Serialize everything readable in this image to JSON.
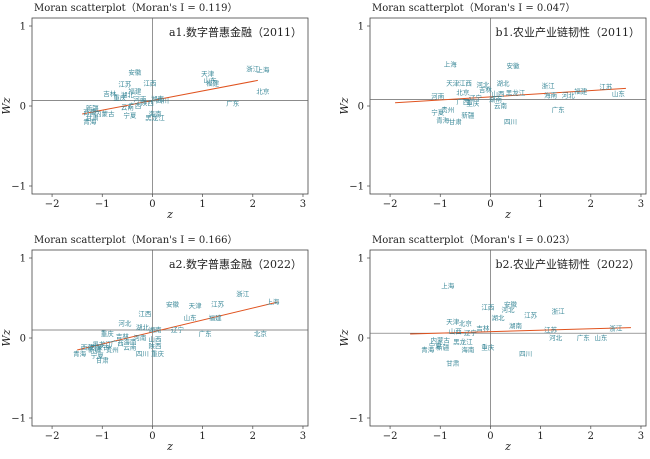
{
  "chart_data": [
    {
      "type": "scatter",
      "title": "Moran scatterplot（Moran's I = 0.119）",
      "annotation": "a1.数字普惠金融（2011）",
      "xlabel": "z",
      "ylabel": "Wz",
      "xlim": [
        -2.4,
        3.1
      ],
      "ylim": [
        -1.1,
        1.1
      ],
      "xticks": [
        "−2",
        "−1",
        "0",
        "1",
        "2",
        "3"
      ],
      "yticks": [
        "−1",
        "0",
        "1"
      ],
      "hline": 0.07,
      "fit": [
        [
          -1.4,
          -0.1
        ],
        [
          2.1,
          0.32
        ]
      ],
      "points": [
        {
          "label": "安徽",
          "x": -0.35,
          "y": 0.42
        },
        {
          "label": "江苏",
          "x": -0.55,
          "y": 0.27
        },
        {
          "label": "江西",
          "x": -0.05,
          "y": 0.28
        },
        {
          "label": "福建",
          "x": -0.35,
          "y": 0.18
        },
        {
          "label": "湖北",
          "x": -0.5,
          "y": 0.14
        },
        {
          "label": "吉林",
          "x": -0.85,
          "y": 0.15
        },
        {
          "label": "重庆",
          "x": -0.65,
          "y": 0.1
        },
        {
          "label": "河南",
          "x": -0.25,
          "y": 0.08
        },
        {
          "label": "湖南",
          "x": 0.1,
          "y": 0.09
        },
        {
          "label": "四川",
          "x": 0.2,
          "y": 0.06
        },
        {
          "label": "陕西",
          "x": -0.1,
          "y": 0.04
        },
        {
          "label": "广西",
          "x": -0.35,
          "y": 0.0
        },
        {
          "label": "云南",
          "x": -0.5,
          "y": -0.02
        },
        {
          "label": "新疆",
          "x": -1.2,
          "y": -0.03
        },
        {
          "label": "西藏",
          "x": -1.25,
          "y": -0.08
        },
        {
          "label": "内蒙古",
          "x": -0.95,
          "y": -0.1
        },
        {
          "label": "宁夏",
          "x": -0.45,
          "y": -0.12
        },
        {
          "label": "甘肃",
          "x": -1.2,
          "y": -0.15
        },
        {
          "label": "青海",
          "x": -1.25,
          "y": -0.2
        },
        {
          "label": "海南",
          "x": 0.05,
          "y": -0.1
        },
        {
          "label": "黑龙江",
          "x": 0.05,
          "y": -0.15
        },
        {
          "label": "天津",
          "x": 1.1,
          "y": 0.4
        },
        {
          "label": "山东",
          "x": 1.15,
          "y": 0.32
        },
        {
          "label": "福建",
          "x": 1.2,
          "y": 0.28
        },
        {
          "label": "浙江",
          "x": 2.0,
          "y": 0.46
        },
        {
          "label": "上海",
          "x": 2.2,
          "y": 0.45
        },
        {
          "label": "广东",
          "x": 1.6,
          "y": 0.03
        },
        {
          "label": "北京",
          "x": 2.2,
          "y": 0.18
        }
      ]
    },
    {
      "type": "scatter",
      "title": "Moran scatterplot（Moran's I = 0.047）",
      "annotation": "b1.农业产业链韧性（2011）",
      "xlabel": "z",
      "ylabel": "Wz",
      "xlim": [
        -2.4,
        3.1
      ],
      "ylim": [
        -1.1,
        1.1
      ],
      "xticks": [
        "−2",
        "−1",
        "0",
        "1",
        "2",
        "3"
      ],
      "yticks": [
        "−1",
        "0",
        "1"
      ],
      "hline": 0.08,
      "fit": [
        [
          -1.9,
          0.04
        ],
        [
          2.7,
          0.22
        ]
      ],
      "points": [
        {
          "label": "上海",
          "x": -0.8,
          "y": 0.52
        },
        {
          "label": "安徽",
          "x": 0.45,
          "y": 0.5
        },
        {
          "label": "天津",
          "x": -0.75,
          "y": 0.28
        },
        {
          "label": "江西",
          "x": -0.5,
          "y": 0.28
        },
        {
          "label": "河北",
          "x": -0.15,
          "y": 0.26
        },
        {
          "label": "湖北",
          "x": 0.25,
          "y": 0.28
        },
        {
          "label": "吉林",
          "x": -0.1,
          "y": 0.2
        },
        {
          "label": "北京",
          "x": -0.55,
          "y": 0.17
        },
        {
          "label": "山西",
          "x": 0.15,
          "y": 0.15
        },
        {
          "label": "河南",
          "x": -1.05,
          "y": 0.12
        },
        {
          "label": "辽宁",
          "x": -0.3,
          "y": 0.1
        },
        {
          "label": "黑龙江",
          "x": 0.5,
          "y": 0.16
        },
        {
          "label": "湖南",
          "x": 0.1,
          "y": 0.08
        },
        {
          "label": "广西",
          "x": -0.55,
          "y": 0.05
        },
        {
          "label": "重庆",
          "x": -0.35,
          "y": 0.03
        },
        {
          "label": "贵州",
          "x": -0.85,
          "y": -0.05
        },
        {
          "label": "宁夏",
          "x": -1.05,
          "y": -0.08
        },
        {
          "label": "新疆",
          "x": -0.45,
          "y": -0.12
        },
        {
          "label": "青海",
          "x": -0.95,
          "y": -0.18
        },
        {
          "label": "甘肃",
          "x": -0.7,
          "y": -0.2
        },
        {
          "label": "云南",
          "x": 0.2,
          "y": 0.0
        },
        {
          "label": "浙江",
          "x": 1.15,
          "y": 0.25
        },
        {
          "label": "江苏",
          "x": 2.3,
          "y": 0.24
        },
        {
          "label": "海南",
          "x": 1.2,
          "y": 0.13
        },
        {
          "label": "河北",
          "x": 1.55,
          "y": 0.13
        },
        {
          "label": "福建",
          "x": 1.8,
          "y": 0.18
        },
        {
          "label": "山东",
          "x": 2.55,
          "y": 0.15
        },
        {
          "label": "广东",
          "x": 1.35,
          "y": -0.05
        },
        {
          "label": "四川",
          "x": 0.4,
          "y": -0.2
        }
      ]
    },
    {
      "type": "scatter",
      "title": "Moran scatterplot（Moran's I = 0.166）",
      "annotation": "a2.数字普惠金融（2022）",
      "xlabel": "z",
      "ylabel": "Wz",
      "xlim": [
        -2.4,
        3.1
      ],
      "ylim": [
        -1.1,
        1.1
      ],
      "xticks": [
        "−2",
        "−1",
        "0",
        "1",
        "2",
        "3"
      ],
      "yticks": [
        "−1",
        "0",
        "1"
      ],
      "hline": 0.1,
      "fit": [
        [
          -1.5,
          -0.15
        ],
        [
          2.5,
          0.45
        ]
      ],
      "points": [
        {
          "label": "浙江",
          "x": 1.8,
          "y": 0.55
        },
        {
          "label": "上海",
          "x": 2.4,
          "y": 0.45
        },
        {
          "label": "安徽",
          "x": 0.4,
          "y": 0.42
        },
        {
          "label": "天津",
          "x": 0.85,
          "y": 0.4
        },
        {
          "label": "江苏",
          "x": 1.3,
          "y": 0.42
        },
        {
          "label": "福建",
          "x": 1.25,
          "y": 0.25
        },
        {
          "label": "山东",
          "x": 0.75,
          "y": 0.25
        },
        {
          "label": "江西",
          "x": -0.15,
          "y": 0.3
        },
        {
          "label": "河北",
          "x": -0.55,
          "y": 0.18
        },
        {
          "label": "湖北",
          "x": -0.2,
          "y": 0.13
        },
        {
          "label": "湖南",
          "x": 0.05,
          "y": 0.1
        },
        {
          "label": "辽宁",
          "x": 0.5,
          "y": 0.1
        },
        {
          "label": "吉林",
          "x": -0.6,
          "y": 0.02
        },
        {
          "label": "重庆",
          "x": -0.9,
          "y": 0.05
        },
        {
          "label": "河南",
          "x": -0.25,
          "y": 0.0
        },
        {
          "label": "山西",
          "x": 0.05,
          "y": -0.02
        },
        {
          "label": "海南",
          "x": -0.45,
          "y": -0.05
        },
        {
          "label": "广西",
          "x": -0.7,
          "y": -0.07
        },
        {
          "label": "黑龙江",
          "x": -1.0,
          "y": -0.08
        },
        {
          "label": "陕西",
          "x": 0.05,
          "y": -0.1
        },
        {
          "label": "西藏",
          "x": -1.3,
          "y": -0.12
        },
        {
          "label": "内蒙古",
          "x": -1.05,
          "y": -0.12
        },
        {
          "label": "云南",
          "x": -0.45,
          "y": -0.12
        },
        {
          "label": "贵州",
          "x": -0.8,
          "y": -0.15
        },
        {
          "label": "新疆",
          "x": -1.15,
          "y": -0.15
        },
        {
          "label": "青海",
          "x": -1.45,
          "y": -0.2
        },
        {
          "label": "宁夏",
          "x": -1.1,
          "y": -0.22
        },
        {
          "label": "四川",
          "x": -0.2,
          "y": -0.2
        },
        {
          "label": "重庆",
          "x": 0.1,
          "y": -0.2
        },
        {
          "label": "甘肃",
          "x": -1.0,
          "y": -0.28
        },
        {
          "label": "广东",
          "x": 1.05,
          "y": 0.05
        },
        {
          "label": "北京",
          "x": 2.15,
          "y": 0.05
        }
      ]
    },
    {
      "type": "scatter",
      "title": "Moran scatterplot（Moran's I = 0.023）",
      "annotation": "b2.农业产业链韧性（2022）",
      "xlabel": "z",
      "ylabel": "Wz",
      "xlim": [
        -2.4,
        3.1
      ],
      "ylim": [
        -1.1,
        1.1
      ],
      "xticks": [
        "−2",
        "−1",
        "0",
        "1",
        "2",
        "3"
      ],
      "yticks": [
        "−1",
        "0",
        "1"
      ],
      "hline": 0.06,
      "fit": [
        [
          -1.6,
          0.05
        ],
        [
          2.8,
          0.13
        ]
      ],
      "points": [
        {
          "label": "上海",
          "x": -0.85,
          "y": 0.65
        },
        {
          "label": "安徽",
          "x": 0.4,
          "y": 0.42
        },
        {
          "label": "江西",
          "x": -0.05,
          "y": 0.38
        },
        {
          "label": "河北",
          "x": 0.35,
          "y": 0.35
        },
        {
          "label": "湖北",
          "x": 0.15,
          "y": 0.25
        },
        {
          "label": "江苏",
          "x": 0.8,
          "y": 0.28
        },
        {
          "label": "浙江",
          "x": 1.35,
          "y": 0.33
        },
        {
          "label": "天津",
          "x": -0.75,
          "y": 0.2
        },
        {
          "label": "北京",
          "x": -0.5,
          "y": 0.18
        },
        {
          "label": "湖南",
          "x": 0.5,
          "y": 0.15
        },
        {
          "label": "吉林",
          "x": -0.15,
          "y": 0.12
        },
        {
          "label": "江苏",
          "x": 1.2,
          "y": 0.1
        },
        {
          "label": "浙江",
          "x": 2.5,
          "y": 0.12
        },
        {
          "label": "山西",
          "x": -0.7,
          "y": 0.08
        },
        {
          "label": "辽宁",
          "x": -0.4,
          "y": 0.06
        },
        {
          "label": "河北",
          "x": 1.3,
          "y": 0.0
        },
        {
          "label": "广东",
          "x": 1.85,
          "y": 0.0
        },
        {
          "label": "山东",
          "x": 2.2,
          "y": 0.0
        },
        {
          "label": "内蒙古",
          "x": -1.0,
          "y": -0.03
        },
        {
          "label": "宁夏",
          "x": -1.1,
          "y": -0.1
        },
        {
          "label": "黑龙江",
          "x": -0.55,
          "y": -0.05
        },
        {
          "label": "新疆",
          "x": -0.95,
          "y": -0.12
        },
        {
          "label": "青海",
          "x": -1.25,
          "y": -0.15
        },
        {
          "label": "海南",
          "x": -0.45,
          "y": -0.15
        },
        {
          "label": "重庆",
          "x": -0.05,
          "y": -0.12
        },
        {
          "label": "四川",
          "x": 0.7,
          "y": -0.2
        },
        {
          "label": "甘肃",
          "x": -0.75,
          "y": -0.32
        }
      ]
    }
  ]
}
